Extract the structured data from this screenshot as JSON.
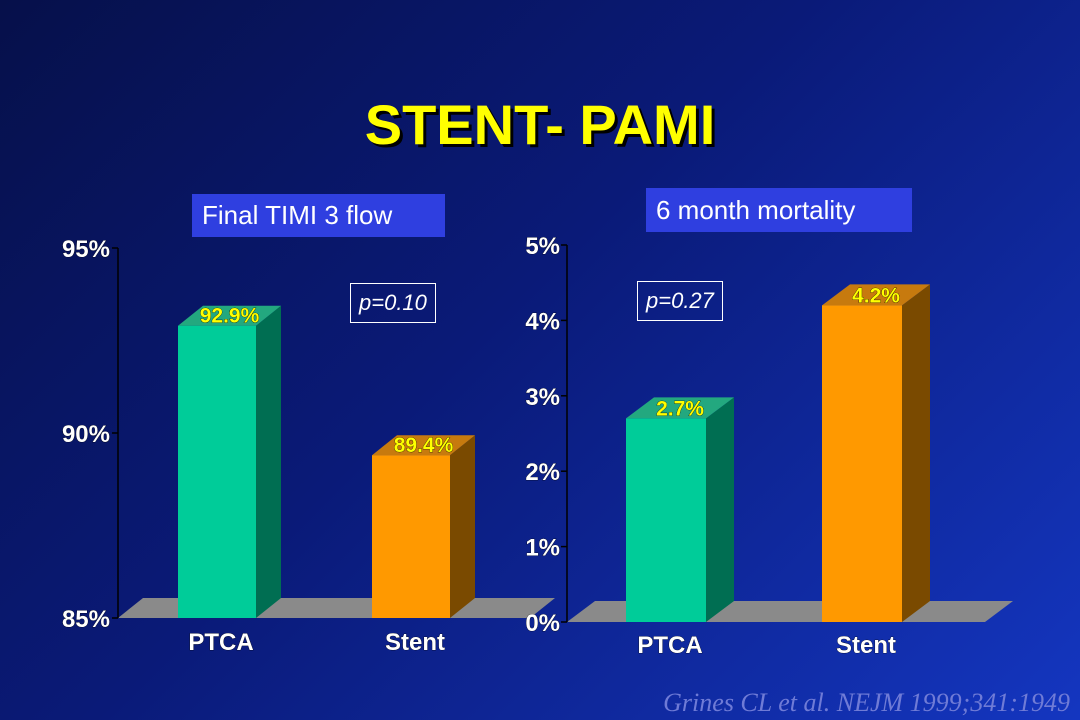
{
  "slide": {
    "title": "STENT- PAMI",
    "citation": "Grines CL et al. NEJM 1999;341:1949"
  },
  "colors": {
    "ptca": "#00cc99",
    "ptca_side": "#006e52",
    "ptca_top": "#23a87f",
    "stent": "#ff9900",
    "stent_side": "#7a4a00",
    "stent_top": "#c77a0e",
    "floor": "#8a8a8a",
    "label_yellow": "#ffff00"
  },
  "chart_data": [
    {
      "type": "bar",
      "title": "Final TIMI 3 flow",
      "categories": [
        "PTCA",
        "Stent"
      ],
      "values": [
        92.9,
        89.4
      ],
      "value_labels": [
        "92.9%",
        "89.4%"
      ],
      "ylim": [
        85,
        95
      ],
      "yticks": [
        85,
        90,
        95
      ],
      "ytick_labels": [
        "85%",
        "90%",
        "95%"
      ],
      "annotation": "p=0.10",
      "style": "3d"
    },
    {
      "type": "bar",
      "title": "6 month mortality",
      "categories": [
        "PTCA",
        "Stent"
      ],
      "values": [
        2.7,
        4.2
      ],
      "value_labels": [
        "2.7%",
        "4.2%"
      ],
      "ylim": [
        0,
        5
      ],
      "yticks": [
        0,
        1,
        2,
        3,
        4,
        5
      ],
      "ytick_labels": [
        "0%",
        "1%",
        "2%",
        "3%",
        "4%",
        "5%"
      ],
      "annotation": "p=0.27",
      "style": "3d"
    }
  ]
}
